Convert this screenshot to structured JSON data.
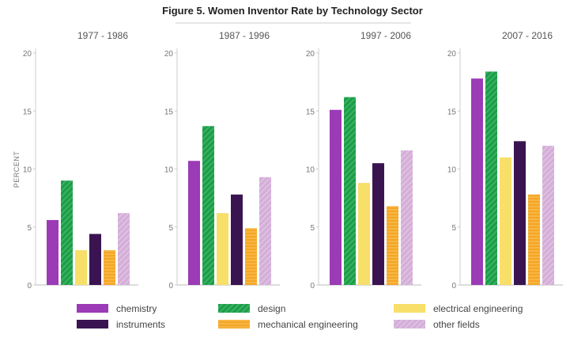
{
  "chart_data": {
    "type": "bar",
    "title": "Figure 5. Women Inventor Rate by Technology Sector",
    "ylabel": "PERCENT",
    "ylim": [
      0,
      20
    ],
    "yticks": [
      0,
      5,
      10,
      15,
      20
    ],
    "grid": false,
    "legend_position": "bottom",
    "panels": [
      "1977 - 1986",
      "1987 - 1996",
      "1997 - 2006",
      "2007 - 2016"
    ],
    "series": [
      {
        "name": "chemistry",
        "color": "#9b3bb5",
        "pattern": "solid",
        "values": [
          5.6,
          10.7,
          15.1,
          17.8
        ]
      },
      {
        "name": "design",
        "color": "#1f9e4a",
        "pattern": "hatched",
        "values": [
          9.0,
          13.7,
          16.2,
          18.4
        ]
      },
      {
        "name": "electrical engineering",
        "color": "#f7df6a",
        "pattern": "solid",
        "values": [
          3.0,
          6.2,
          8.8,
          11.0
        ]
      },
      {
        "name": "instruments",
        "color": "#3a1450",
        "pattern": "solid",
        "values": [
          4.4,
          7.8,
          10.5,
          12.4
        ]
      },
      {
        "name": "mechanical engineering",
        "color": "#f5a623",
        "pattern": "striped",
        "values": [
          3.0,
          4.9,
          6.8,
          7.8
        ]
      },
      {
        "name": "other fields",
        "color": "#d4afd8",
        "pattern": "hatched",
        "values": [
          6.2,
          9.3,
          11.6,
          12.0
        ]
      }
    ]
  }
}
